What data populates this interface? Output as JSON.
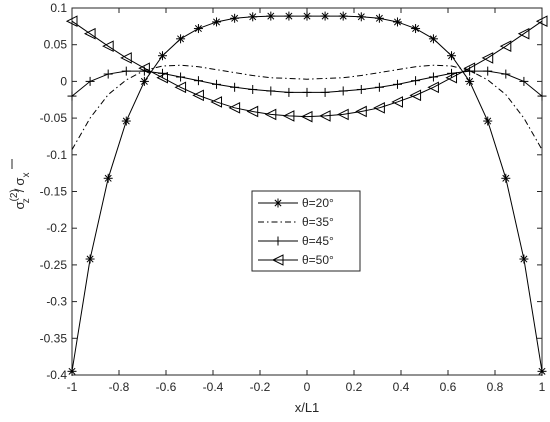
{
  "chart_data": {
    "type": "line",
    "xlabel": "x/L1",
    "ylabel_base": "σ",
    "ylabel_sub_num": "z",
    "ylabel_sup_num": "(2)",
    "ylabel_slash": "/",
    "ylabel_den": "σ",
    "ylabel_sub_den": "x",
    "xlim": [
      -1,
      1
    ],
    "ylim": [
      -0.4,
      0.1
    ],
    "xticks": [
      "-1",
      "-0.8",
      "-0.6",
      "-0.4",
      "-0.2",
      "0",
      "0.2",
      "0.4",
      "0.6",
      "0.8",
      "1"
    ],
    "yticks": [
      "0.1",
      "0.05",
      "0",
      "-0.05",
      "-0.1",
      "-0.15",
      "-0.2",
      "-0.25",
      "-0.3",
      "-0.35",
      "-0.4"
    ],
    "grid": false,
    "legend_position": "center",
    "x": [
      -1.0,
      -0.923,
      -0.846,
      -0.769,
      -0.692,
      -0.615,
      -0.538,
      -0.462,
      -0.385,
      -0.308,
      -0.231,
      -0.154,
      -0.077,
      0.0,
      0.077,
      0.154,
      0.231,
      0.308,
      0.385,
      0.462,
      0.538,
      0.615,
      0.692,
      0.769,
      0.846,
      0.923,
      1.0
    ],
    "series": [
      {
        "name": "θ=20°",
        "marker": "asterisk",
        "line": "solid",
        "values": [
          -0.395,
          -0.242,
          -0.132,
          -0.054,
          0.0,
          0.035,
          0.058,
          0.072,
          0.081,
          0.086,
          0.088,
          0.089,
          0.089,
          0.089,
          0.089,
          0.089,
          0.088,
          0.086,
          0.081,
          0.072,
          0.058,
          0.035,
          0.0,
          -0.054,
          -0.132,
          -0.242,
          -0.395
        ]
      },
      {
        "name": "θ=35°",
        "marker": "none",
        "line": "dashdot",
        "values": [
          -0.093,
          -0.05,
          -0.018,
          0.002,
          0.015,
          0.021,
          0.022,
          0.02,
          0.016,
          0.012,
          0.008,
          0.005,
          0.004,
          0.003,
          0.004,
          0.005,
          0.008,
          0.012,
          0.016,
          0.02,
          0.022,
          0.021,
          0.015,
          0.002,
          -0.018,
          -0.05,
          -0.093
        ]
      },
      {
        "name": "θ=45°",
        "marker": "plus",
        "line": "solid",
        "values": [
          -0.02,
          0.0,
          0.01,
          0.014,
          0.014,
          0.011,
          0.006,
          0.001,
          -0.004,
          -0.008,
          -0.011,
          -0.013,
          -0.015,
          -0.015,
          -0.015,
          -0.013,
          -0.011,
          -0.008,
          -0.004,
          0.001,
          0.006,
          0.011,
          0.014,
          0.014,
          0.01,
          0.0,
          -0.02
        ]
      },
      {
        "name": "θ=50°",
        "marker": "triangle-left",
        "line": "solid",
        "values": [
          0.082,
          0.065,
          0.048,
          0.032,
          0.018,
          0.005,
          -0.008,
          -0.019,
          -0.028,
          -0.036,
          -0.041,
          -0.045,
          -0.047,
          -0.048,
          -0.047,
          -0.045,
          -0.041,
          -0.036,
          -0.028,
          -0.019,
          -0.008,
          0.005,
          0.018,
          0.032,
          0.048,
          0.065,
          0.082
        ]
      }
    ]
  }
}
